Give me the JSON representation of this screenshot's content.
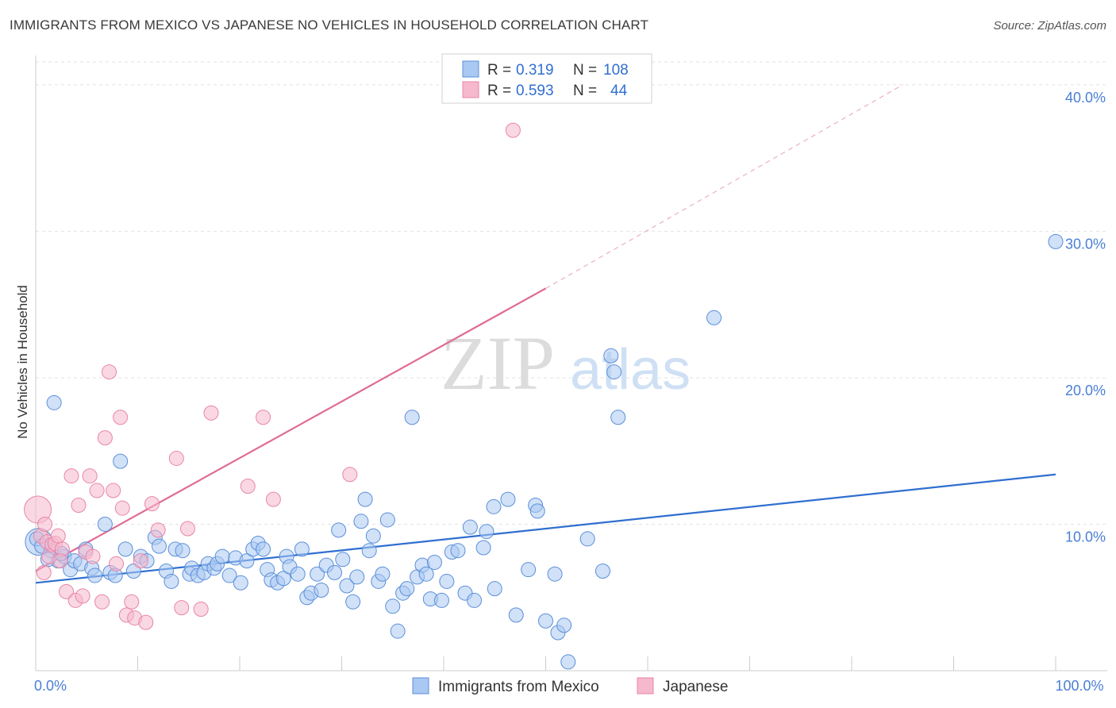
{
  "title": "IMMIGRANTS FROM MEXICO VS JAPANESE NO VEHICLES IN HOUSEHOLD CORRELATION CHART",
  "source": "Source: ZipAtlas.com",
  "watermark": {
    "zip": "ZIP",
    "atlas": "atlas"
  },
  "legend_box": {
    "rows": [
      {
        "r_label": "R =",
        "r_value": "0.319",
        "n_label": "N =",
        "n_value": "108",
        "color": "#a9c8f2"
      },
      {
        "r_label": "R =",
        "r_value": "0.593",
        "n_label": "N =",
        "n_value": "44",
        "color": "#f6b8cc"
      }
    ]
  },
  "chart_data": {
    "type": "scatter",
    "title": "IMMIGRANTS FROM MEXICO VS JAPANESE NO VEHICLES IN HOUSEHOLD CORRELATION CHART",
    "xlabel": "",
    "ylabel": "No Vehicles in Household",
    "xlim": [
      0,
      100
    ],
    "ylim": [
      0,
      42
    ],
    "x_tick_labels": [
      {
        "value": 0,
        "label": "0.0%"
      },
      {
        "value": 100,
        "label": "100.0%"
      }
    ],
    "y_ticks": [
      {
        "value": 10,
        "label": "10.0%"
      },
      {
        "value": 20,
        "label": "20.0%"
      },
      {
        "value": 30,
        "label": "30.0%"
      },
      {
        "value": 40,
        "label": "40.0%"
      }
    ],
    "grid": true,
    "legend_position": "bottom",
    "series": [
      {
        "name": "Immigrants from Mexico",
        "color": "#a9c8f2",
        "stroke": "#5b8fd9",
        "trend": {
          "x": [
            0,
            100
          ],
          "y": [
            6.0,
            13.4
          ],
          "color": "#2f6fd0"
        },
        "points": [
          [
            0.3,
            8.8
          ],
          [
            1.8,
            18.3
          ],
          [
            1.5,
            8.2
          ],
          [
            2.2,
            7.5
          ],
          [
            2.8,
            7.8
          ],
          [
            3.4,
            6.9
          ],
          [
            3.8,
            7.5
          ],
          [
            4.4,
            7.3
          ],
          [
            4.9,
            8.3
          ],
          [
            5.5,
            7.0
          ],
          [
            5.8,
            6.5
          ],
          [
            6.8,
            10.0
          ],
          [
            7.3,
            6.7
          ],
          [
            7.8,
            6.5
          ],
          [
            8.3,
            14.3
          ],
          [
            8.8,
            8.3
          ],
          [
            9.6,
            6.8
          ],
          [
            10.3,
            7.8
          ],
          [
            10.9,
            7.5
          ],
          [
            11.7,
            9.1
          ],
          [
            12.1,
            8.5
          ],
          [
            12.8,
            6.8
          ],
          [
            13.3,
            6.1
          ],
          [
            13.7,
            8.3
          ],
          [
            14.4,
            8.2
          ],
          [
            15.1,
            6.6
          ],
          [
            15.3,
            7.0
          ],
          [
            15.9,
            6.5
          ],
          [
            16.5,
            6.7
          ],
          [
            16.9,
            7.3
          ],
          [
            17.5,
            7.0
          ],
          [
            17.8,
            7.3
          ],
          [
            18.3,
            7.8
          ],
          [
            19.0,
            6.5
          ],
          [
            19.6,
            7.7
          ],
          [
            20.1,
            6.0
          ],
          [
            20.7,
            7.5
          ],
          [
            21.3,
            8.3
          ],
          [
            21.8,
            8.7
          ],
          [
            22.3,
            8.3
          ],
          [
            22.7,
            6.9
          ],
          [
            23.1,
            6.2
          ],
          [
            23.7,
            6.0
          ],
          [
            24.3,
            6.3
          ],
          [
            24.6,
            7.8
          ],
          [
            24.9,
            7.1
          ],
          [
            25.7,
            6.6
          ],
          [
            26.1,
            8.3
          ],
          [
            26.6,
            5.0
          ],
          [
            27.0,
            5.3
          ],
          [
            27.6,
            6.6
          ],
          [
            28.0,
            5.5
          ],
          [
            28.5,
            7.2
          ],
          [
            29.3,
            6.7
          ],
          [
            29.7,
            9.6
          ],
          [
            30.1,
            7.6
          ],
          [
            30.5,
            5.8
          ],
          [
            31.1,
            4.7
          ],
          [
            31.5,
            6.4
          ],
          [
            31.9,
            10.2
          ],
          [
            32.3,
            11.7
          ],
          [
            32.7,
            8.2
          ],
          [
            33.1,
            9.2
          ],
          [
            33.6,
            6.1
          ],
          [
            34.0,
            6.6
          ],
          [
            34.5,
            10.3
          ],
          [
            35.0,
            4.4
          ],
          [
            35.5,
            2.7
          ],
          [
            36.0,
            5.3
          ],
          [
            36.4,
            5.6
          ],
          [
            36.9,
            17.3
          ],
          [
            37.4,
            6.4
          ],
          [
            37.9,
            7.2
          ],
          [
            38.3,
            6.6
          ],
          [
            38.7,
            4.9
          ],
          [
            39.1,
            7.4
          ],
          [
            39.8,
            4.8
          ],
          [
            40.3,
            6.1
          ],
          [
            40.8,
            8.1
          ],
          [
            41.4,
            8.2
          ],
          [
            42.1,
            5.3
          ],
          [
            42.6,
            9.8
          ],
          [
            43.0,
            4.8
          ],
          [
            43.9,
            8.4
          ],
          [
            44.2,
            9.5
          ],
          [
            44.9,
            11.2
          ],
          [
            45.0,
            5.6
          ],
          [
            46.3,
            11.7
          ],
          [
            47.1,
            3.8
          ],
          [
            48.3,
            6.9
          ],
          [
            49.0,
            11.3
          ],
          [
            49.2,
            10.9
          ],
          [
            50.0,
            3.4
          ],
          [
            50.9,
            6.6
          ],
          [
            51.2,
            2.6
          ],
          [
            51.8,
            3.1
          ],
          [
            52.2,
            0.6
          ],
          [
            54.1,
            9.0
          ],
          [
            55.6,
            6.8
          ],
          [
            56.4,
            21.5
          ],
          [
            56.7,
            20.4
          ],
          [
            57.1,
            17.3
          ],
          [
            66.5,
            24.1
          ],
          [
            100.0,
            29.3
          ],
          [
            0.1,
            9.0
          ],
          [
            0.6,
            8.5
          ],
          [
            1.2,
            7.6
          ],
          [
            2.5,
            8.0
          ]
        ],
        "point_sizes": {
          "large": [
            [
              0.3,
              8.8
            ]
          ]
        }
      },
      {
        "name": "Japanese",
        "color": "#f6b8cc",
        "stroke": "#e886a6",
        "trend": {
          "x": [
            0,
            50
          ],
          "y": [
            6.8,
            26.1
          ],
          "dashed_x": [
            50,
            85
          ],
          "dashed_y": [
            26.1,
            40.0
          ],
          "color": "#e06b96"
        },
        "points": [
          [
            0.2,
            11.0
          ],
          [
            0.5,
            9.2
          ],
          [
            0.8,
            6.7
          ],
          [
            1.1,
            8.8
          ],
          [
            1.3,
            7.8
          ],
          [
            1.6,
            8.6
          ],
          [
            1.9,
            8.7
          ],
          [
            2.2,
            9.2
          ],
          [
            2.6,
            8.3
          ],
          [
            3.0,
            5.4
          ],
          [
            3.5,
            13.3
          ],
          [
            3.9,
            4.8
          ],
          [
            4.2,
            11.3
          ],
          [
            4.6,
            5.1
          ],
          [
            4.9,
            8.1
          ],
          [
            5.3,
            13.3
          ],
          [
            5.6,
            7.8
          ],
          [
            6.0,
            12.3
          ],
          [
            6.5,
            4.7
          ],
          [
            6.8,
            15.9
          ],
          [
            7.2,
            20.4
          ],
          [
            7.6,
            12.3
          ],
          [
            7.9,
            7.3
          ],
          [
            8.3,
            17.3
          ],
          [
            8.5,
            11.1
          ],
          [
            8.9,
            3.8
          ],
          [
            9.4,
            4.7
          ],
          [
            9.7,
            3.6
          ],
          [
            10.3,
            7.5
          ],
          [
            10.8,
            3.3
          ],
          [
            11.4,
            11.4
          ],
          [
            12.0,
            9.6
          ],
          [
            13.8,
            14.5
          ],
          [
            14.3,
            4.3
          ],
          [
            14.9,
            9.7
          ],
          [
            16.2,
            4.2
          ],
          [
            17.2,
            17.6
          ],
          [
            20.8,
            12.6
          ],
          [
            22.3,
            17.3
          ],
          [
            23.3,
            11.7
          ],
          [
            30.8,
            13.4
          ],
          [
            46.8,
            36.9
          ],
          [
            0.9,
            10.0
          ],
          [
            2.4,
            7.5
          ]
        ],
        "point_sizes": {
          "large": [
            [
              0.2,
              11.0
            ]
          ]
        }
      }
    ]
  },
  "bottom_legend": [
    {
      "label": "Immigrants from Mexico",
      "color": "#a9c8f2",
      "stroke": "#5b8fd9"
    },
    {
      "label": "Japanese",
      "color": "#f6b8cc",
      "stroke": "#e886a6"
    }
  ]
}
